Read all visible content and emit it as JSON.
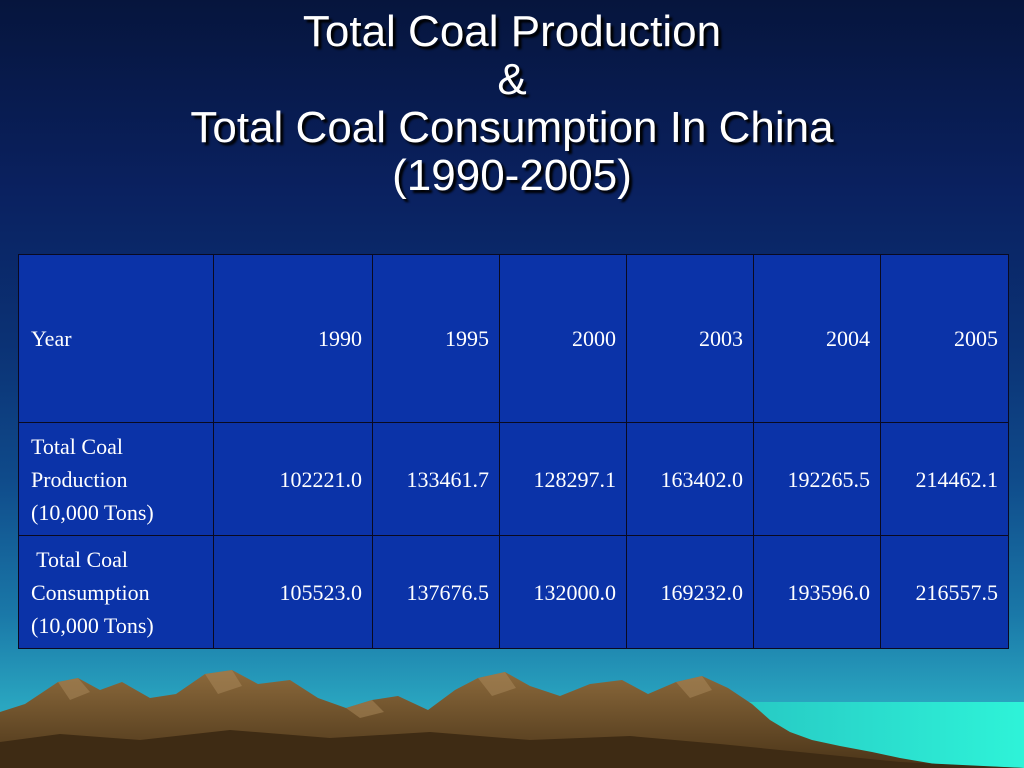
{
  "slide": {
    "title_lines": [
      "Total Coal Production",
      "&",
      "Total Coal Consumption In China",
      "(1990-2005)"
    ]
  },
  "table": {
    "header": {
      "label": "Year",
      "years": [
        "1990",
        "1995",
        "2000",
        "2003",
        "2004",
        "2005"
      ]
    },
    "rows": [
      {
        "label_lines": [
          "Total Coal",
          "Production",
          "(10,000 Tons)"
        ],
        "values": [
          "102221.0",
          "133461.7",
          "128297.1",
          "163402.0",
          "192265.5",
          "214462.1"
        ]
      },
      {
        "label_lines": [
          " Total Coal",
          "Consumption",
          "(10,000 Tons)"
        ],
        "values": [
          "105523.0",
          "137676.5",
          "132000.0",
          "169232.0",
          "193596.0",
          "216557.5"
        ]
      }
    ]
  },
  "colors": {
    "background_top": "#06153d",
    "background_bottom": "#37b8c8",
    "table_fill": "#0b33a8",
    "text": "#ffffff",
    "mountain": "#7a5a32",
    "sea": "#2ee8d0"
  }
}
